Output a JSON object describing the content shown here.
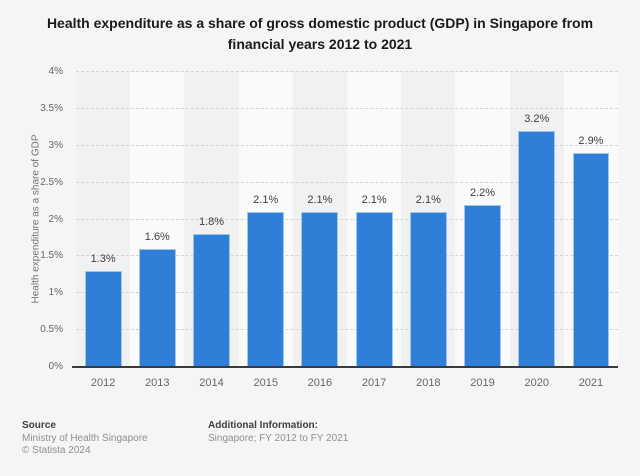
{
  "title": {
    "full": "Health expenditure as a share of gross domestic product (GDP) in Singapore from financial years 2012 to 2021",
    "line1": "Health expenditure as a share of gross domestic product (GDP) in Singapore from",
    "line2": "financial years 2012 to 2021"
  },
  "chart_data": {
    "type": "bar",
    "title": "Health expenditure as a share of gross domestic product (GDP) in Singapore from financial years 2012 to 2021",
    "categories": [
      "2012",
      "2013",
      "2014",
      "2015",
      "2016",
      "2017",
      "2018",
      "2019",
      "2020",
      "2021"
    ],
    "values": [
      1.3,
      1.6,
      1.8,
      2.1,
      2.1,
      2.1,
      2.1,
      2.2,
      3.2,
      2.9
    ],
    "value_labels": [
      "1.3%",
      "1.6%",
      "1.8%",
      "2.1%",
      "2.1%",
      "2.1%",
      "2.1%",
      "2.2%",
      "3.2%",
      "2.9%"
    ],
    "xlabel": "",
    "ylabel": "Health expenditure as a share of GDP",
    "ylim": [
      0,
      4
    ],
    "ytick_values": [
      0,
      0.5,
      1,
      1.5,
      2,
      2.5,
      3,
      3.5,
      4
    ],
    "ytick_labels": [
      "0%",
      "0.5%",
      "1%",
      "1.5%",
      "2%",
      "2.5%",
      "3%",
      "3.5%",
      "4%"
    ],
    "grid": "horizontal-dashed",
    "legend": "none",
    "bar_color": "#2f7ed8"
  },
  "footer": {
    "source_label": "Source",
    "source_value": "Ministry of Health Singapore",
    "copyright": "© Statista 2024",
    "additional_label": "Additional Information:",
    "additional_value": "Singapore; FY 2012 to FY 2021"
  }
}
